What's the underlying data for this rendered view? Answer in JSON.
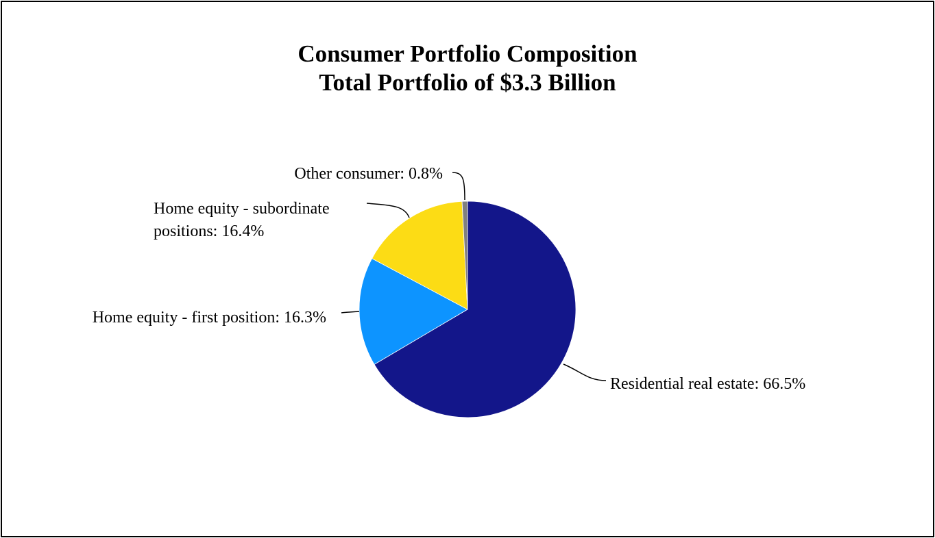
{
  "chart_data": {
    "type": "pie",
    "title": "Consumer Portfolio Composition",
    "subtitle": "Total Portfolio of $3.3 Billion",
    "start_angle_deg": 90,
    "direction": "clockwise",
    "slices": [
      {
        "label_lines": [
          "Residential real estate: 66.5%"
        ],
        "value": 66.5,
        "color": "#13168A"
      },
      {
        "label_lines": [
          "Home equity - first position: 16.3%"
        ],
        "value": 16.3,
        "color": "#0D94FF"
      },
      {
        "label_lines": [
          "Home equity - subordinate",
          "positions: 16.4%"
        ],
        "value": 16.4,
        "color": "#FCDC15"
      },
      {
        "label_lines": [
          "Other consumer: 0.8%"
        ],
        "value": 0.8,
        "color": "#808080"
      }
    ]
  }
}
